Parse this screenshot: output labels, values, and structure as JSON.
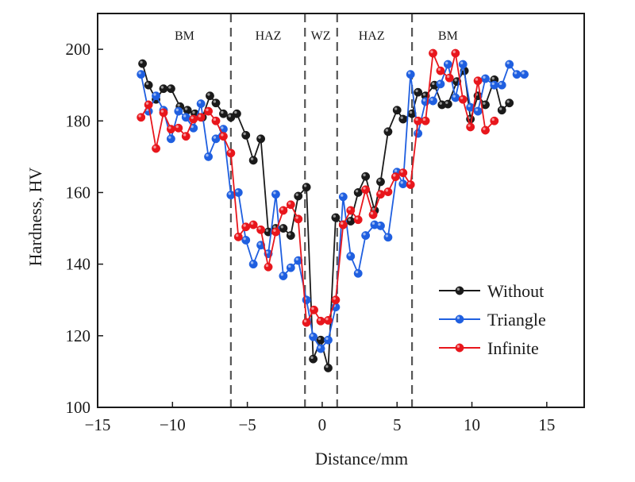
{
  "chart_data": {
    "type": "line",
    "title": "",
    "xlabel": "Distance/mm",
    "ylabel": "Hardness, HV",
    "xlim": [
      -15,
      17.5
    ],
    "ylim": [
      100,
      210
    ],
    "xticks": [
      -15,
      -10,
      -5,
      0,
      5,
      10,
      15
    ],
    "xtick_labels": [
      "−15",
      "−10",
      "−5",
      "0",
      "5",
      "10",
      "15"
    ],
    "yticks": [
      100,
      120,
      140,
      160,
      180,
      200
    ],
    "ytick_labels": [
      "100",
      "120",
      "140",
      "160",
      "180",
      "200"
    ],
    "grid": false,
    "legend_position": "bottom-right",
    "zone_boundaries": [
      -6.1,
      -1.15,
      1.0,
      6.0
    ],
    "zones": [
      {
        "label": "BM",
        "x": -9.2
      },
      {
        "label": "HAZ",
        "x": -3.6
      },
      {
        "label": "WZ",
        "x": -0.1
      },
      {
        "label": "HAZ",
        "x": 3.3
      },
      {
        "label": "BM",
        "x": 8.4
      }
    ],
    "series": [
      {
        "name": "Without",
        "color": "#1a1a1a",
        "x": [
          -12.0,
          -11.6,
          -11.1,
          -10.6,
          -10.1,
          -9.5,
          -9.0,
          -8.5,
          -8.0,
          -7.5,
          -7.1,
          -6.6,
          -6.1,
          -5.7,
          -5.1,
          -4.6,
          -4.1,
          -3.6,
          -3.1,
          -2.6,
          -2.1,
          -1.6,
          -1.05,
          -0.6,
          -0.1,
          0.4,
          0.9,
          1.4,
          1.9,
          2.4,
          2.9,
          3.5,
          3.9,
          4.4,
          5.0,
          5.4,
          6.0,
          6.4,
          6.9,
          7.5,
          8.0,
          8.4,
          9.0,
          9.5,
          9.9,
          10.4,
          10.9,
          11.5,
          12.0,
          12.5
        ],
        "y": [
          196,
          190,
          186,
          189,
          189,
          184,
          183,
          182,
          181,
          187,
          185,
          182,
          181,
          182,
          176,
          169,
          175,
          149,
          150,
          150,
          148,
          159,
          161.5,
          113.5,
          118.8,
          111,
          153,
          151,
          152,
          160,
          164.5,
          155,
          163,
          177,
          183,
          180.5,
          182,
          188,
          187,
          190,
          184.5,
          184.7,
          191,
          194,
          180.5,
          187,
          184.5,
          191.5,
          183,
          185
        ]
      },
      {
        "name": "Triangle",
        "color": "#1f5fe0",
        "x": [
          -12.1,
          -11.6,
          -11.1,
          -10.6,
          -10.1,
          -9.6,
          -9.1,
          -8.6,
          -8.1,
          -7.6,
          -7.1,
          -6.6,
          -6.1,
          -5.6,
          -5.1,
          -4.6,
          -4.1,
          -3.6,
          -3.1,
          -2.6,
          -2.1,
          -1.6,
          -1.05,
          -0.6,
          -0.1,
          0.4,
          0.9,
          1.4,
          1.9,
          2.4,
          2.9,
          3.5,
          3.9,
          4.4,
          5.0,
          5.4,
          5.9,
          6.4,
          6.9,
          7.4,
          7.9,
          8.4,
          8.9,
          9.4,
          9.9,
          10.4,
          10.9,
          11.5,
          12.0,
          12.5,
          13.0,
          13.5
        ],
        "y": [
          193,
          182.7,
          187,
          183,
          175,
          182.7,
          181,
          178,
          184.8,
          170,
          175,
          177.7,
          159.3,
          160,
          146.7,
          140,
          145.3,
          142.9,
          159.5,
          136.7,
          139,
          141,
          130,
          119.7,
          116.4,
          118.8,
          128,
          158.8,
          142.2,
          137.4,
          148,
          151,
          150.7,
          147.5,
          165.7,
          162.4,
          193,
          176.5,
          185.4,
          185.6,
          190.3,
          195.8,
          186.5,
          195.8,
          183.8,
          182.7,
          191.8,
          190,
          190,
          195.8,
          193,
          193
        ]
      },
      {
        "name": "Infinite",
        "color": "#e8161c",
        "x": [
          -12.1,
          -11.6,
          -11.1,
          -10.6,
          -10.1,
          -9.6,
          -9.1,
          -8.6,
          -8.1,
          -7.6,
          -7.1,
          -6.6,
          -6.1,
          -5.6,
          -5.1,
          -4.6,
          -4.1,
          -3.6,
          -3.1,
          -2.6,
          -2.1,
          -1.6,
          -1.05,
          -0.55,
          -0.1,
          0.4,
          0.9,
          1.4,
          1.9,
          2.4,
          2.9,
          3.4,
          3.9,
          4.4,
          4.9,
          5.4,
          5.9,
          6.4,
          6.9,
          7.4,
          7.9,
          8.5,
          8.9,
          9.4,
          9.9,
          10.4,
          10.9,
          11.5
        ],
        "y": [
          181,
          184.5,
          172.3,
          182.3,
          177.7,
          178,
          175.7,
          180.5,
          181,
          182.7,
          180,
          175.7,
          171,
          147.6,
          150.4,
          151,
          149.6,
          139.2,
          149,
          155,
          156.6,
          152.6,
          123.7,
          127.2,
          124.1,
          124.3,
          130,
          151,
          155,
          152.4,
          160.8,
          153.8,
          159.5,
          160.2,
          164.4,
          165.5,
          162.2,
          180,
          180,
          198.9,
          194,
          192,
          198.9,
          186,
          178.3,
          191.2,
          177.4,
          180
        ]
      }
    ]
  }
}
